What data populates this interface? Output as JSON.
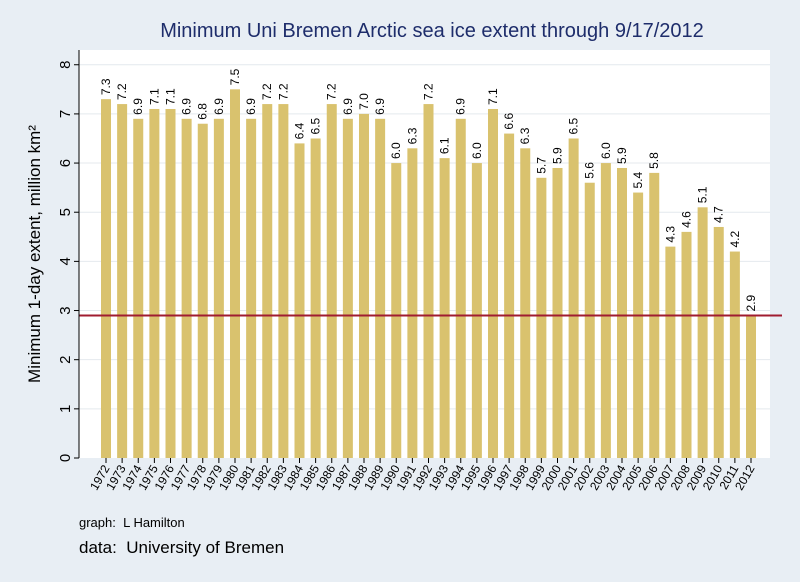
{
  "colors": {
    "background": "#e8eef4",
    "plot_area": "#ffffff",
    "bar": "#d9c26e",
    "reference_line": "#a01c30",
    "title": "#1e2d6b"
  },
  "chart_data": {
    "type": "bar",
    "title": "Minimum Uni Bremen Arctic sea ice extent through 9/17/2012",
    "xlabel": "",
    "ylabel": "Minimum 1-day extent, million km²",
    "ylim": [
      0,
      8.3
    ],
    "yticks": [
      0,
      1,
      2,
      3,
      4,
      5,
      6,
      7,
      8
    ],
    "grid": true,
    "reference_line": 2.9,
    "categories": [
      "1972",
      "1973",
      "1974",
      "1975",
      "1976",
      "1977",
      "1978",
      "1979",
      "1980",
      "1981",
      "1982",
      "1983",
      "1984",
      "1985",
      "1986",
      "1987",
      "1988",
      "1989",
      "1990",
      "1991",
      "1992",
      "1993",
      "1994",
      "1995",
      "1996",
      "1997",
      "1998",
      "1999",
      "2000",
      "2001",
      "2002",
      "2003",
      "2004",
      "2005",
      "2006",
      "2007",
      "2008",
      "2009",
      "2010",
      "2011",
      "2012"
    ],
    "values": [
      7.3,
      7.2,
      6.9,
      7.1,
      7.1,
      6.9,
      6.8,
      6.9,
      7.5,
      6.9,
      7.2,
      7.2,
      6.4,
      6.5,
      7.2,
      6.9,
      7.0,
      6.9,
      6.0,
      6.3,
      7.2,
      6.1,
      6.9,
      6.0,
      7.1,
      6.6,
      6.3,
      5.7,
      5.9,
      6.5,
      5.6,
      6.0,
      5.9,
      5.4,
      5.8,
      4.3,
      4.6,
      5.1,
      4.7,
      4.2,
      2.9
    ],
    "value_labels": [
      "7.3",
      "7.2",
      "6.9",
      "7.1",
      "7.1",
      "6.9",
      "6.8",
      "6.9",
      "7.5",
      "6.9",
      "7.2",
      "7.2",
      "6.4",
      "6.5",
      "7.2",
      "6.9",
      "7.0",
      "6.9",
      "6.0",
      "6.3",
      "7.2",
      "6.1",
      "6.9",
      "6.0",
      "7.1",
      "6.6",
      "6.3",
      "5.7",
      "5.9",
      "6.5",
      "5.6",
      "6.0",
      "5.9",
      "5.4",
      "5.8",
      "4.3",
      "4.6",
      "5.1",
      "4.7",
      "4.2",
      "2.9"
    ]
  },
  "notes": {
    "graph_credit": "graph:  L Hamilton",
    "data_credit": "data:  University of Bremen"
  }
}
